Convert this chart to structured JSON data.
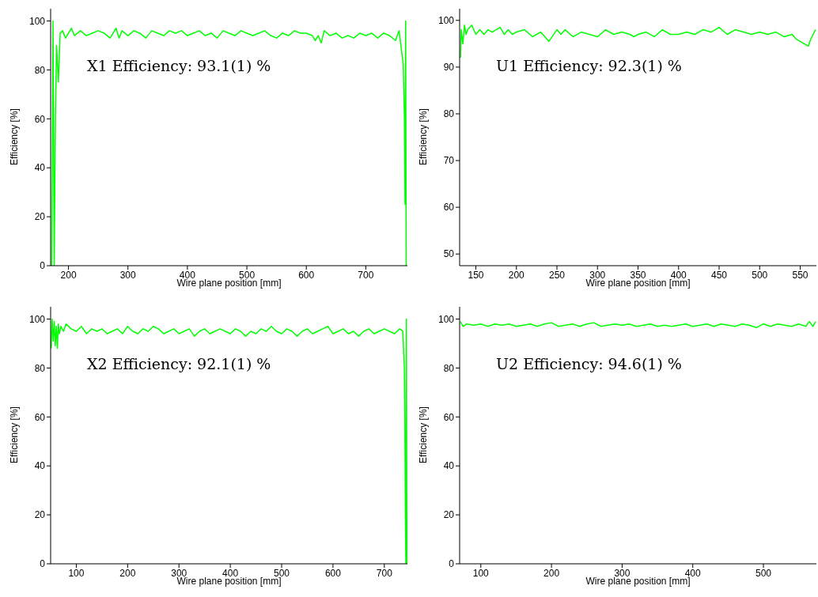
{
  "chart_data": [
    {
      "type": "line",
      "xlabel": "Wire plane position [mm]",
      "ylabel": "Efficiency [%]",
      "annotations": [
        "X1 Efficiency: 93.1(1) %"
      ],
      "xlim": [
        170,
        770
      ],
      "ylim": [
        0,
        105
      ],
      "xticks": [
        200,
        300,
        400,
        500,
        600,
        700
      ],
      "yticks": [
        0,
        20,
        40,
        60,
        80,
        100
      ],
      "marker": "none",
      "series": [
        {
          "color": "#00ff00",
          "x": [
            172,
            174,
            176,
            178,
            180,
            183,
            186,
            190,
            195,
            200,
            205,
            210,
            220,
            230,
            240,
            250,
            260,
            270,
            280,
            285,
            290,
            300,
            310,
            320,
            330,
            340,
            350,
            360,
            370,
            380,
            390,
            400,
            410,
            420,
            430,
            440,
            450,
            460,
            470,
            480,
            490,
            500,
            510,
            520,
            530,
            540,
            550,
            560,
            570,
            580,
            590,
            600,
            610,
            615,
            620,
            625,
            630,
            640,
            650,
            660,
            670,
            680,
            690,
            700,
            710,
            720,
            730,
            740,
            750,
            756,
            760,
            763,
            765,
            766,
            767,
            768
          ],
          "values": [
            0,
            100,
            0,
            60,
            90,
            75,
            95,
            96,
            93,
            95,
            97,
            94,
            96,
            94,
            95,
            96,
            95,
            93,
            97,
            93,
            96,
            94,
            96,
            95,
            93,
            96,
            95,
            94,
            96,
            95,
            96,
            94,
            95,
            96,
            94,
            95,
            93,
            96,
            95,
            94,
            96,
            95,
            94,
            95,
            96,
            94,
            93,
            95,
            94,
            96,
            95,
            95,
            94,
            92,
            94,
            91,
            96,
            94,
            95,
            93,
            94,
            93,
            95,
            94,
            95,
            93,
            95,
            94,
            92,
            96,
            88,
            82,
            60,
            25,
            100,
            0
          ]
        }
      ]
    },
    {
      "type": "line",
      "xlabel": "Wire plane position [mm]",
      "ylabel": "Efficiency [%]",
      "annotations": [
        "U1 Efficiency: 92.3(1) %"
      ],
      "xlim": [
        130,
        570
      ],
      "ylim": [
        47.5,
        102.5
      ],
      "xticks": [
        150,
        200,
        250,
        300,
        350,
        400,
        450,
        500,
        550
      ],
      "yticks": [
        50,
        60,
        70,
        80,
        90,
        100
      ],
      "marker": "none",
      "series": [
        {
          "color": "#00ff00",
          "x": [
            131,
            132,
            134,
            136,
            138,
            140,
            145,
            150,
            155,
            160,
            165,
            170,
            175,
            180,
            185,
            190,
            195,
            200,
            210,
            220,
            225,
            230,
            240,
            250,
            255,
            260,
            270,
            280,
            290,
            300,
            310,
            320,
            330,
            340,
            345,
            350,
            360,
            370,
            380,
            390,
            400,
            410,
            420,
            430,
            440,
            450,
            460,
            470,
            480,
            490,
            500,
            510,
            520,
            530,
            540,
            545,
            550,
            555,
            560,
            563,
            566,
            569
          ],
          "values": [
            92,
            98,
            95,
            99,
            97,
            98,
            99,
            97,
            98,
            97,
            98,
            97.5,
            98,
            98.5,
            97,
            98,
            97,
            97.5,
            98,
            96.5,
            97,
            97.5,
            95.5,
            98,
            97,
            98,
            96.5,
            97.5,
            97,
            96.5,
            98,
            97,
            97.5,
            97,
            96.5,
            97,
            97.5,
            96.5,
            98,
            97,
            97,
            97.5,
            97,
            98,
            97.5,
            98.5,
            97,
            98,
            97.5,
            97,
            97.5,
            97,
            97.5,
            96.5,
            97,
            96,
            95.5,
            95,
            94.5,
            96,
            97,
            98
          ]
        }
      ]
    },
    {
      "type": "line",
      "xlabel": "Wire plane position [mm]",
      "ylabel": "Efficiency [%]",
      "annotations": [
        "X2 Efficiency: 92.1(1) %"
      ],
      "xlim": [
        50,
        745
      ],
      "ylim": [
        0,
        105
      ],
      "xticks": [
        100,
        200,
        300,
        400,
        500,
        600,
        700
      ],
      "yticks": [
        0,
        20,
        40,
        60,
        80,
        100
      ],
      "marker": "none",
      "series": [
        {
          "color": "#00ff00",
          "x": [
            51,
            53,
            55,
            57,
            59,
            61,
            63,
            65,
            67,
            70,
            75,
            80,
            90,
            100,
            110,
            120,
            130,
            140,
            150,
            160,
            170,
            180,
            190,
            200,
            210,
            220,
            230,
            240,
            250,
            260,
            270,
            280,
            290,
            300,
            310,
            320,
            330,
            340,
            350,
            360,
            370,
            380,
            390,
            400,
            410,
            420,
            430,
            440,
            450,
            460,
            470,
            480,
            490,
            500,
            510,
            520,
            530,
            540,
            550,
            560,
            570,
            580,
            590,
            600,
            610,
            620,
            630,
            640,
            650,
            660,
            670,
            680,
            690,
            700,
            710,
            720,
            730,
            736,
            739,
            740,
            741,
            742,
            743,
            744
          ],
          "values": [
            88,
            100,
            91,
            99,
            89,
            97,
            88,
            98,
            94,
            97,
            95,
            98,
            96,
            95,
            97,
            94,
            96,
            95,
            96,
            94,
            95,
            96,
            94,
            97,
            95,
            94,
            96,
            95,
            97,
            96,
            94,
            95,
            96,
            94,
            95,
            96,
            93,
            95,
            96,
            94,
            95,
            96,
            95,
            94,
            96,
            95,
            93,
            95,
            94,
            96,
            95,
            97,
            95,
            94,
            96,
            95,
            93,
            95,
            96,
            94,
            95,
            96,
            97,
            94,
            95,
            96,
            94,
            95,
            93,
            95,
            96,
            94,
            95,
            96,
            95,
            94,
            96,
            95,
            80,
            60,
            20,
            0,
            100,
            0
          ]
        }
      ]
    },
    {
      "type": "line",
      "xlabel": "Wire plane position [mm]",
      "ylabel": "Efficiency [%]",
      "annotations": [
        "U2 Efficiency: 94.6(1) %"
      ],
      "xlim": [
        70,
        575
      ],
      "ylim": [
        0,
        105
      ],
      "xticks": [
        100,
        200,
        300,
        400,
        500
      ],
      "yticks": [
        0,
        20,
        40,
        60,
        80,
        100
      ],
      "marker": "none",
      "series": [
        {
          "color": "#00ff00",
          "x": [
            71,
            75,
            80,
            90,
            100,
            110,
            120,
            130,
            140,
            150,
            160,
            170,
            180,
            190,
            200,
            210,
            220,
            230,
            240,
            250,
            260,
            270,
            280,
            290,
            300,
            310,
            320,
            330,
            340,
            350,
            360,
            370,
            380,
            390,
            400,
            410,
            420,
            430,
            440,
            450,
            460,
            470,
            480,
            490,
            500,
            510,
            520,
            530,
            540,
            550,
            560,
            565,
            570,
            574
          ],
          "values": [
            99,
            97,
            98,
            97.5,
            98,
            97,
            98,
            97.5,
            98,
            97,
            97.5,
            98,
            97,
            98,
            98.5,
            97,
            97.5,
            98,
            97,
            98,
            98.5,
            97,
            97.5,
            98,
            97.5,
            98,
            97,
            97.5,
            98,
            97,
            97.5,
            97,
            97.5,
            98,
            97,
            97.5,
            98,
            97,
            98,
            97.5,
            97,
            98,
            97.5,
            96.5,
            98,
            97,
            98,
            97.5,
            97,
            98,
            97,
            99,
            97,
            99
          ]
        }
      ]
    }
  ]
}
